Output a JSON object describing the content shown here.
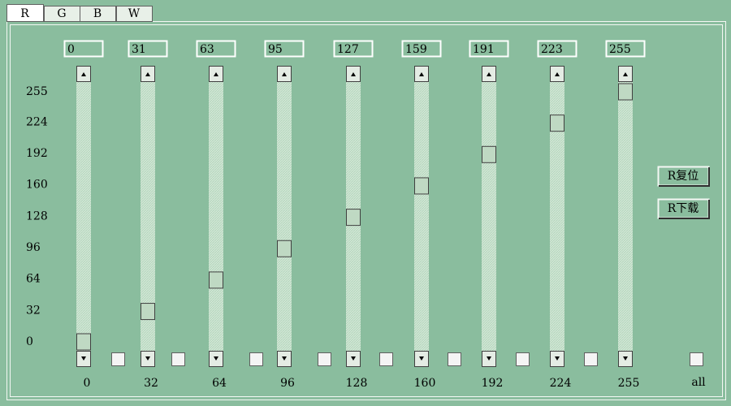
{
  "tabs": [
    "R",
    "G",
    "B",
    "W"
  ],
  "sliders": {
    "values": [
      0,
      31,
      63,
      95,
      127,
      159,
      191,
      223,
      255
    ]
  },
  "scale_labels": [
    255,
    224,
    192,
    160,
    128,
    96,
    64,
    32,
    0
  ],
  "bottom_labels": [
    "0",
    "32",
    "64",
    "96",
    "128",
    "160",
    "192",
    "224",
    "255"
  ],
  "all_checkbox": {
    "label": "all"
  },
  "buttons": [
    "R复位",
    "R下载"
  ]
}
